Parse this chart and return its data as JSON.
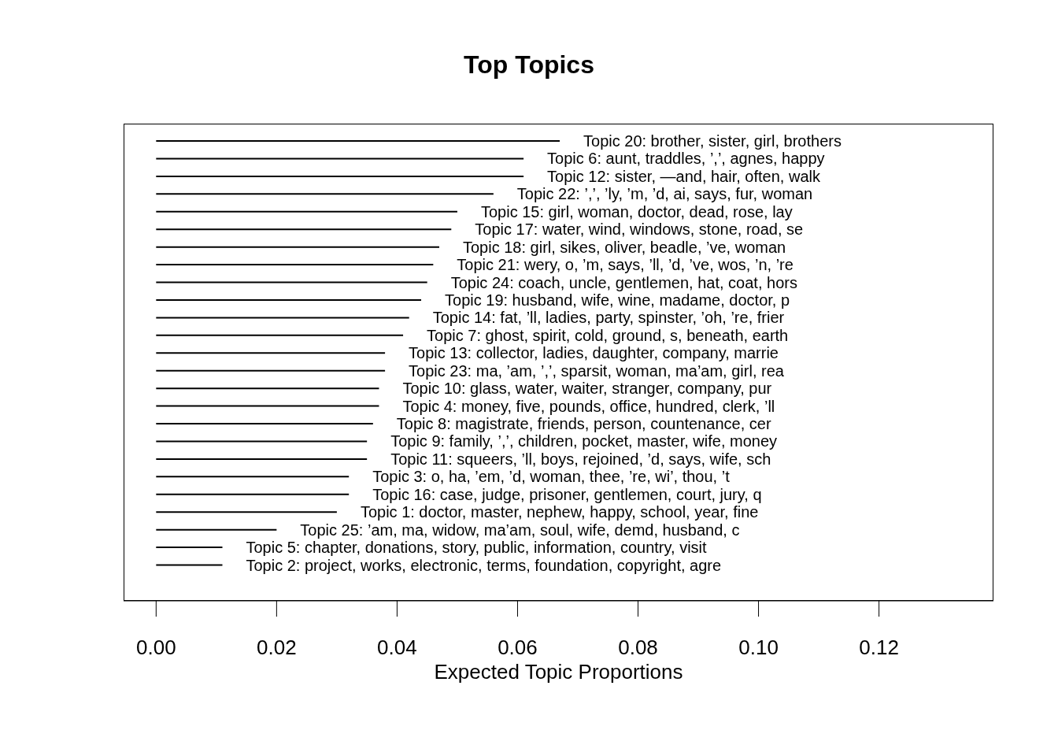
{
  "chart_data": {
    "type": "bar",
    "orientation": "horizontal",
    "title": "Top Topics",
    "xlabel": "Expected Topic Proportions",
    "categories": [
      "Topic 20: brother, sister, girl, brothers",
      "Topic 6: aunt, traddles, ’,’, agnes, happy",
      "Topic 12: sister, —and, hair, often, walk",
      "Topic 22: ’,’, ’ly, ’m, ’d, ai, says, fur, woman",
      "Topic 15: girl, woman, doctor, dead, rose, lay",
      "Topic 17: water, wind, windows, stone, road, se",
      "Topic 18: girl, sikes, oliver, beadle, ’ve, woman",
      "Topic 21: wery, o, ’m, says, ’ll, ’d, ’ve, wos, ’n, ’re",
      "Topic 24: coach, uncle, gentlemen, hat, coat, hors",
      "Topic 19: husband, wife, wine, madame, doctor, p",
      "Topic 14: fat, ’ll, ladies, party, spinster, ’oh, ’re, frier",
      "Topic 7: ghost, spirit, cold, ground, s, beneath, earth",
      "Topic 13: collector, ladies, daughter, company, marrie",
      "Topic 23: ma, ’am, ’,’, sparsit, woman, ma’am, girl, rea",
      "Topic 10: glass, water, waiter, stranger, company, pur",
      "Topic 4: money, five, pounds, office, hundred, clerk, ’ll",
      "Topic 8: magistrate, friends, person, countenance, cer",
      "Topic 9: family, ’,’, children, pocket, master, wife, money",
      "Topic 11: squeers, ’ll, boys, rejoined, ’d, says, wife, sch",
      "Topic 3: o, ha, ’em, ’d, woman, thee, ’re, wi’, thou, ’t",
      "Topic 16: case, judge, prisoner, gentlemen, court, jury, q",
      "Topic 1: doctor, master, nephew, happy, school, year, fine",
      "Topic 25: ’am, ma, widow, ma’am, soul, wife, demd, husband, c",
      "Topic 5: chapter, donations, story, public, information, country, visit",
      "Topic 2: project, works, electronic, terms, foundation, copyright, agre"
    ],
    "values": [
      0.067,
      0.061,
      0.061,
      0.056,
      0.05,
      0.049,
      0.047,
      0.046,
      0.045,
      0.044,
      0.042,
      0.041,
      0.038,
      0.038,
      0.037,
      0.037,
      0.036,
      0.035,
      0.035,
      0.032,
      0.032,
      0.03,
      0.02,
      0.011,
      0.011
    ],
    "color": "#000000",
    "xlim": [
      -0.0054,
      0.139
    ],
    "xticks": [
      {
        "value": 0,
        "label": "0.00"
      },
      {
        "value": 0.02,
        "label": "0.02"
      },
      {
        "value": 0.04,
        "label": "0.04"
      },
      {
        "value": 0.06,
        "label": "0.06"
      },
      {
        "value": 0.08,
        "label": "0.08"
      },
      {
        "value": 0.1,
        "label": "0.10"
      },
      {
        "value": 0.12,
        "label": "0.12"
      }
    ],
    "tick_labels": "x",
    "grid": false,
    "legend": false
  }
}
